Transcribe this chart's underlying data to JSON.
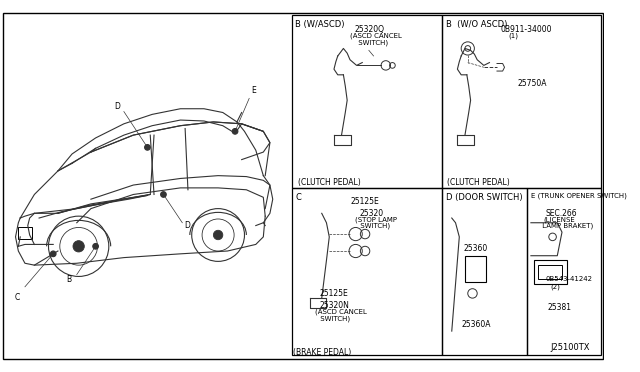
{
  "bg_color": "#ffffff",
  "border_color": "#000000",
  "line_color": "#333333",
  "text_color": "#000000",
  "fig_width": 6.4,
  "fig_height": 3.72,
  "dpi": 100,
  "footer_text": "J25100TX",
  "box_B_ascd_label": "B (W/ASCD)",
  "box_B_noascd_label": "B  (W/O ASCD)",
  "box_C_label": "C",
  "box_D_label": "D (DOOR SWITCH)",
  "box_E_label": "E (TRUNK OPENER SWITCH)",
  "caption_clutch": "(CLUTCH PEDAL)",
  "caption_brake": "(BRAKE PEDAL)",
  "part_25320Q": "25320Q",
  "part_ascd_cancel_sw": "(ASCD CANCEL\n SWITCH)",
  "part_0B911": "0B911-34000",
  "part_0B911_2": " (1)",
  "part_25750A": "25750A",
  "part_25125E_1": "25125E",
  "part_25320_stop": "25320",
  "part_stop_lamp": "(STOP LAMP\n SWITCH)",
  "part_25125E_2": "25125E",
  "part_25320N": "25320N",
  "part_ascd_cancel_sw2": "(ASCD CANCEL\n SWITCH)",
  "part_25360": "25360",
  "part_25360A": "25360A",
  "part_sec266": "SEC.266",
  "part_license": "(LICENSE\n LAMP BRAKET)",
  "part_0B543": "0B543-41242",
  "part_0B543_2": "(2)",
  "part_25381": "25381",
  "label_B": "B",
  "label_C": "C",
  "label_D": "D",
  "label_E": "E",
  "label_D2": "D"
}
